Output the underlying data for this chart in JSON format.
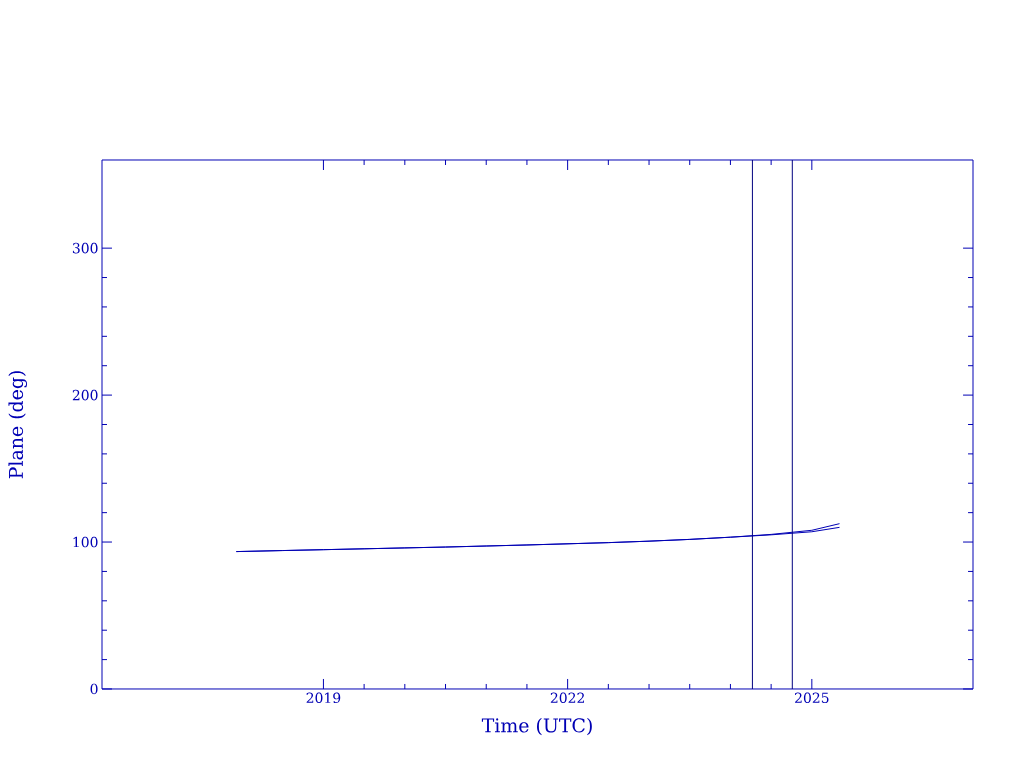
{
  "chart_data": {
    "type": "line",
    "xlabel": "Time (UTC)",
    "ylabel": "Plane (deg)",
    "xlim": [
      2016.28,
      2026.98
    ],
    "xticks": [
      2019,
      2022,
      2025
    ],
    "ylim": [
      0,
      360
    ],
    "yticks": [
      0,
      100,
      200,
      300
    ],
    "x": [
      2017.93,
      2018.5,
      2019,
      2019.5,
      2020,
      2020.5,
      2021,
      2021.5,
      2022,
      2022.5,
      2023,
      2023.5,
      2024,
      2024.5,
      2025,
      2025.34
    ],
    "series": [
      {
        "color": "#0000b4",
        "values": [
          93.5,
          94.2,
          94.8,
          95.4,
          96,
          96.6,
          97.3,
          98,
          98.8,
          99.6,
          100.6,
          101.8,
          103.3,
          105.2,
          108,
          112.5
        ]
      },
      {
        "color": "#0000b4",
        "values": [
          93.5,
          94.2,
          94.8,
          95.4,
          96,
          96.6,
          97.3,
          98,
          98.8,
          99.6,
          100.6,
          101.8,
          103.3,
          104.9,
          107,
          110
        ]
      }
    ],
    "ref_lines": [
      {
        "axis": "x",
        "value": 2024.27,
        "color": "#000080"
      },
      {
        "axis": "x",
        "value": 2024.76,
        "color": "#000080"
      }
    ],
    "grid": false,
    "marker": "none",
    "line_style": "solid"
  }
}
